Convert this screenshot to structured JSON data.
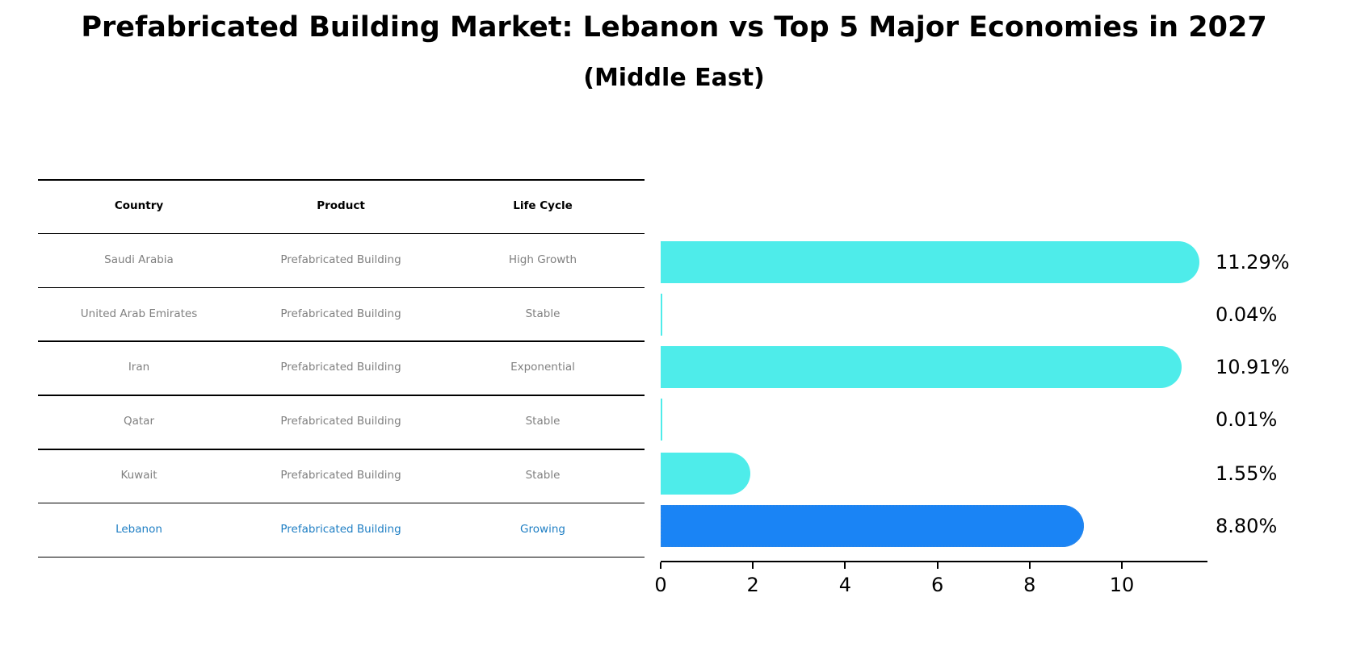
{
  "title": "Prefabricated Building Market: Lebanon vs Top 5 Major Economies in 2027",
  "subtitle": "(Middle East)",
  "table": {
    "headers": [
      "Country",
      "Product",
      "Life Cycle"
    ],
    "rows": [
      [
        "Saudi Arabia",
        "Prefabricated Building",
        "High Growth"
      ],
      [
        "United Arab Emirates",
        "Prefabricated Building",
        "Stable"
      ],
      [
        "Iran",
        "Prefabricated Building",
        "Exponential"
      ],
      [
        "Qatar",
        "Prefabricated Building",
        "Stable"
      ],
      [
        "Kuwait",
        "Prefabricated Building",
        "Stable"
      ],
      [
        "Lebanon",
        "Prefabricated Building",
        "Growing"
      ]
    ],
    "highlight_row": 5
  },
  "colors": {
    "bar_default": "#4eecea",
    "bar_highlight": "#1a84f5",
    "text_muted": "#808080",
    "text_highlight": "#1f7fc4"
  },
  "chart_data": {
    "type": "bar",
    "orientation": "horizontal",
    "title": "Prefabricated Building Market: Lebanon vs Top 5 Major Economies in 2027",
    "subtitle": "(Middle East)",
    "categories": [
      "Saudi Arabia",
      "United Arab Emirates",
      "Iran",
      "Qatar",
      "Kuwait",
      "Lebanon"
    ],
    "values": [
      11.29,
      0.04,
      10.91,
      0.01,
      1.55,
      8.8
    ],
    "value_labels": [
      "11.29%",
      "0.04%",
      "10.91%",
      "0.01%",
      "1.55%",
      "8.80%"
    ],
    "xlabel": "",
    "ylabel": "",
    "xlim": [
      0,
      11.85
    ],
    "xticks": [
      0,
      2,
      4,
      6,
      8,
      10
    ],
    "xtick_labels": [
      "0",
      "2",
      "4",
      "6",
      "8",
      "10"
    ],
    "grid": false,
    "legend": null,
    "highlight": "Lebanon"
  }
}
